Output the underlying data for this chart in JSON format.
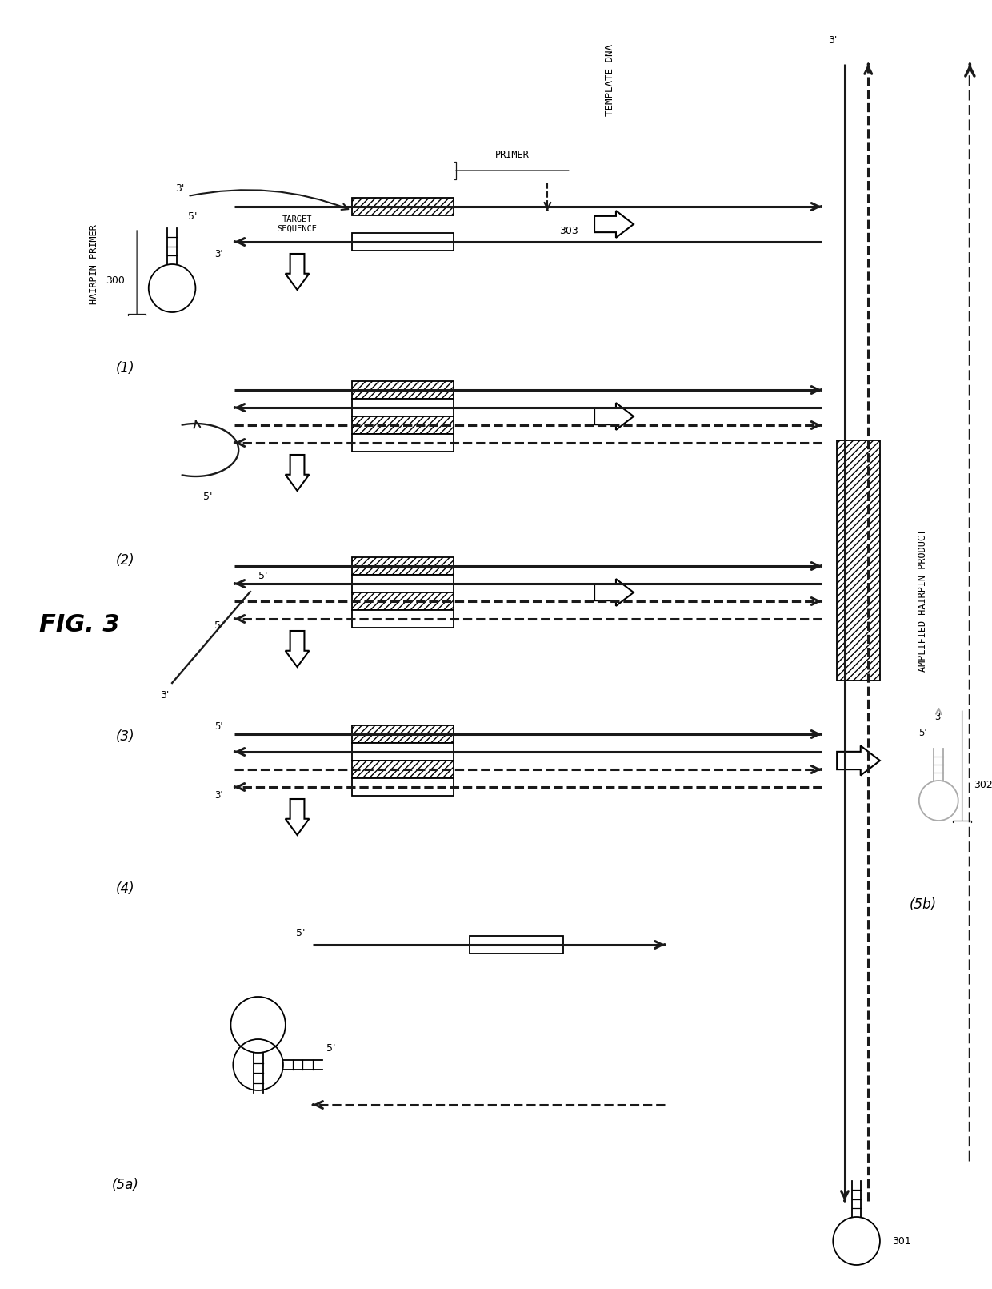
{
  "bg_color": "#ffffff",
  "lc": "#1a1a1a",
  "fig_label": "FIG. 3",
  "labels": {
    "template_dna": "TEMPLATE DNA",
    "primer": "PRIMER",
    "target_seq": "TARGET\nSEQUENCE",
    "hairpin_primer": "HAIRPIN PRIMER",
    "amplified": "AMPLIFIED HAIRPIN PRODUCT",
    "r300": "300",
    "r301": "301",
    "r302": "302",
    "r303": "303"
  },
  "steps": [
    "(1)",
    "(2)",
    "(3)",
    "(4)",
    "(5a)",
    "(5b)"
  ]
}
